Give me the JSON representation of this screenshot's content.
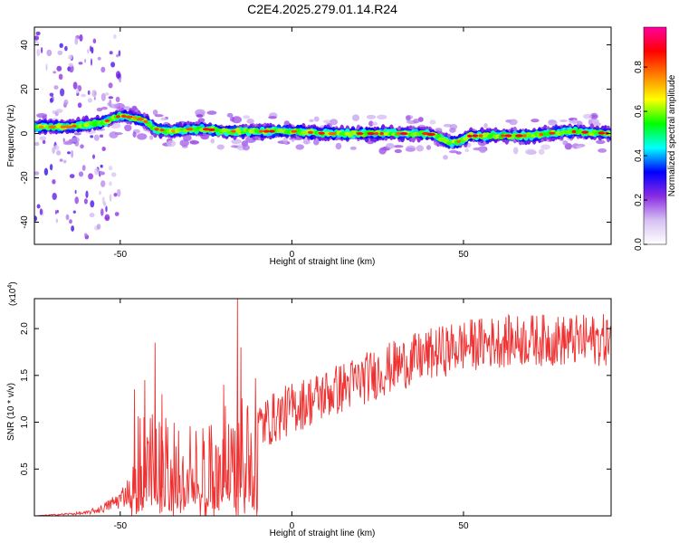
{
  "title": "C2E4.2025.279.01.14.R24",
  "chart_data": [
    {
      "type": "heatmap",
      "title": "C2E4.2025.279.01.14.R24",
      "xlabel": "Height of straight line (km)",
      "ylabel": "Frequency (Hz)",
      "xlim": [
        -75,
        93
      ],
      "ylim": [
        -50,
        48
      ],
      "xticks": [
        "-50",
        "0",
        "50"
      ],
      "yticks": [
        "-40",
        "-20",
        "0",
        "20",
        "40"
      ],
      "colorbar": {
        "label": "Normalized spectral amplitude",
        "range": [
          0.0,
          0.98
        ],
        "ticks": [
          "0.0",
          "0.2",
          "0.4",
          "0.6",
          "0.8"
        ],
        "colors": [
          "#ffffff",
          "#d6c1f2",
          "#8a2be2",
          "#0000ff",
          "#00ffff",
          "#00ff00",
          "#ffff00",
          "#ff8000",
          "#ff0000",
          "#ff00a0"
        ]
      },
      "ridge_x": [
        -75,
        -65,
        -55,
        -50,
        -45,
        -42,
        -40,
        -35,
        -30,
        -25,
        -20,
        -10,
        0,
        10,
        20,
        30,
        40,
        43,
        46,
        48,
        52,
        60,
        70,
        80,
        93
      ],
      "ridge_freq": [
        3,
        3,
        5,
        8,
        7,
        5,
        2,
        1,
        2,
        2,
        1,
        1,
        1,
        0,
        0,
        0,
        0,
        -2,
        -4,
        -4,
        -1,
        -1,
        -1,
        1,
        0
      ]
    },
    {
      "type": "line",
      "xlabel": "Height of straight line (km)",
      "ylabel": "SNR (10 * v/v)",
      "y_multiplier": "(x10",
      "y_multiplier_exp": "4",
      "y_multiplier_close": ")",
      "xlim": [
        -75,
        93
      ],
      "ylim": [
        0,
        2.32
      ],
      "xticks": [
        "-50",
        "0",
        "50"
      ],
      "yticks": [
        "0.5",
        "1.0",
        "1.5",
        "2.0"
      ],
      "series": [
        {
          "name": "SNR",
          "color": "#f03030",
          "envelope_x": [
            -75,
            -60,
            -55,
            -50,
            -47,
            -45,
            -40,
            -35,
            -30,
            -25,
            -20,
            -15,
            -10,
            -5,
            0,
            10,
            20,
            30,
            40,
            50,
            60,
            70,
            80,
            93
          ],
          "envelope_y": [
            0.0,
            0.03,
            0.08,
            0.18,
            0.3,
            0.55,
            0.62,
            0.5,
            0.45,
            0.42,
            0.6,
            0.8,
            0.95,
            1.05,
            1.15,
            1.3,
            1.45,
            1.6,
            1.72,
            1.82,
            1.86,
            1.88,
            1.87,
            1.88
          ],
          "peaks_x": [
            -46,
            -43,
            -40,
            -16,
            -15,
            -20,
            -38
          ],
          "peaks_y": [
            1.35,
            1.45,
            1.85,
            2.34,
            1.8,
            1.4,
            1.3
          ]
        }
      ]
    }
  ]
}
